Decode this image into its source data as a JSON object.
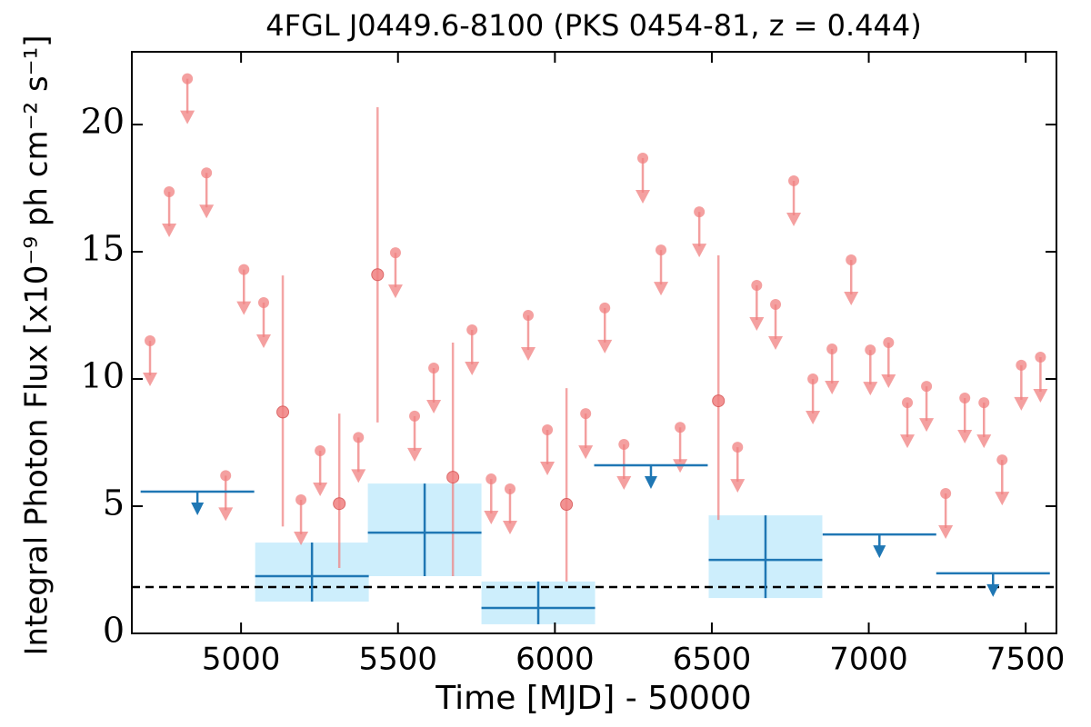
{
  "chart_data": {
    "type": "lightcurve",
    "title": "4FGL J0449.6-8100 (PKS 0454-81, z = 0.444)",
    "x_label": "Time [MJD] - 50000",
    "y_label": "Integral Photon Flux [x10⁻⁹ ph cm⁻² s⁻¹]",
    "xlim": [
      4652,
      7598
    ],
    "ylim": [
      0,
      22.86
    ],
    "xticks": [
      5000,
      5500,
      6000,
      6500,
      7000,
      7500
    ],
    "yticks": [
      0,
      5,
      10,
      15,
      20
    ],
    "reference_level": 1.82,
    "series": [
      {
        "color": "#f08080",
        "upper_limit": true,
        "x": [
          4710,
          4771,
          4829,
          4890,
          4951,
          5009,
          5072,
          5191,
          5252,
          5374,
          5492,
          5553,
          5614,
          5736,
          5797,
          5857,
          5915,
          5976,
          6098,
          6159,
          6220,
          6280,
          6338,
          6399,
          6460,
          6582,
          6643,
          6703,
          6761,
          6822,
          6883,
          6944,
          7005,
          7063,
          7123,
          7184,
          7245,
          7306,
          7367,
          7425,
          7486,
          7547
        ],
        "values": [
          11.5,
          17.36,
          21.8,
          18.1,
          6.2,
          14.3,
          13.0,
          5.25,
          7.18,
          7.7,
          14.96,
          8.54,
          10.43,
          11.93,
          6.07,
          5.68,
          12.5,
          8.0,
          8.64,
          12.79,
          7.43,
          18.68,
          15.07,
          8.1,
          16.57,
          7.32,
          13.68,
          12.93,
          17.79,
          10.0,
          11.18,
          14.68,
          11.14,
          11.43,
          9.07,
          9.71,
          5.5,
          9.25,
          9.07,
          6.82,
          10.54,
          10.86
        ]
      },
      {
        "color": "#f08080",
        "upper_limit": false,
        "x": [
          5133,
          5313,
          5435,
          5675,
          6037,
          6521
        ],
        "values": [
          8.7,
          5.1,
          14.1,
          6.14,
          5.07,
          9.14
        ],
        "lower": [
          4.2,
          2.57,
          8.29,
          2.25,
          2.04,
          4.46
        ],
        "upper": [
          14.07,
          8.64,
          20.68,
          11.43,
          9.64,
          14.86
        ]
      },
      {
        "color": "#1f77b4",
        "upper_limit": true,
        "xerr": 181,
        "x": [
          4861,
          6306,
          7034,
          7396
        ],
        "values": [
          5.57,
          6.61,
          3.89,
          2.36
        ]
      },
      {
        "color": "#1f77b4",
        "band_color": "#cdeefc",
        "upper_limit": false,
        "xerr": 181,
        "x": [
          5226,
          5585,
          5947,
          6671
        ],
        "values": [
          2.25,
          3.96,
          1.0,
          2.89
        ],
        "lower": [
          1.25,
          2.25,
          0.36,
          1.39
        ],
        "upper": [
          3.57,
          5.89,
          2.04,
          4.64
        ]
      }
    ]
  }
}
